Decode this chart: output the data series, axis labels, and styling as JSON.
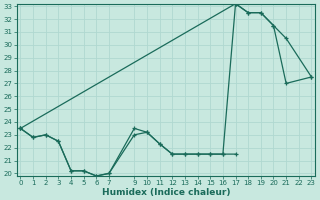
{
  "xlabel": "Humidex (Indice chaleur)",
  "bg_color": "#c8e8df",
  "line_color": "#1a6b5a",
  "grid_color": "#b0d8d0",
  "curve1_x": [
    0,
    1,
    2,
    3,
    4,
    5,
    6,
    7,
    9,
    10,
    11,
    12,
    13,
    14,
    15,
    16,
    17
  ],
  "curve1_y": [
    23.5,
    22.8,
    23.0,
    22.5,
    20.2,
    20.2,
    19.8,
    20.0,
    23.0,
    23.2,
    22.3,
    21.5,
    21.5,
    21.5,
    21.5,
    21.5,
    21.5
  ],
  "curve2_x": [
    0,
    1,
    2,
    3,
    4,
    5,
    6,
    7,
    9,
    10,
    11,
    12,
    13,
    14,
    15,
    16,
    17,
    18,
    19,
    20,
    21,
    23
  ],
  "curve2_y": [
    23.5,
    22.8,
    23.0,
    22.5,
    20.2,
    20.2,
    19.8,
    20.0,
    23.5,
    23.2,
    22.3,
    21.5,
    21.5,
    21.5,
    21.5,
    21.5,
    33.2,
    32.5,
    32.5,
    31.5,
    27.0,
    27.5
  ],
  "curve3_x": [
    0,
    17,
    18,
    19,
    20,
    21,
    23
  ],
  "curve3_y": [
    23.5,
    33.2,
    32.5,
    32.5,
    31.5,
    30.5,
    27.5
  ],
  "ylim": [
    20,
    33
  ],
  "xlim": [
    -0.3,
    23.3
  ],
  "yticks": [
    20,
    21,
    22,
    23,
    24,
    25,
    26,
    27,
    28,
    29,
    30,
    31,
    32,
    33
  ],
  "xticks": [
    0,
    1,
    2,
    3,
    4,
    5,
    6,
    7,
    9,
    10,
    11,
    12,
    13,
    14,
    15,
    16,
    17,
    18,
    19,
    20,
    21,
    22,
    23
  ],
  "xtick_labels": [
    "0",
    "1",
    "2",
    "3",
    "4",
    "5",
    "6",
    "7",
    "9",
    "10",
    "11",
    "12",
    "13",
    "14",
    "15",
    "16",
    "17",
    "18",
    "19",
    "20",
    "21",
    "22",
    "23"
  ]
}
